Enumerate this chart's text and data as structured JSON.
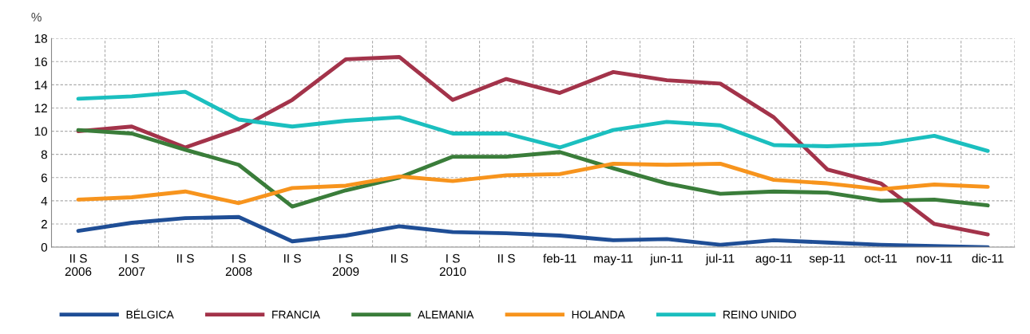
{
  "chart_data": {
    "type": "line",
    "ylabel": "%",
    "categories": [
      "II S\n2006",
      "I S\n2007",
      "II S",
      "I S\n2008",
      "II S",
      "I S\n2009",
      "II S",
      "I S\n2010",
      "II S",
      "feb-11",
      "may-11",
      "jun-11",
      "jul-11",
      "ago-11",
      "sep-11",
      "oct-11",
      "nov-11",
      "dic-11"
    ],
    "series": [
      {
        "name": "BÉLGICA",
        "color": "#1f4e96",
        "values": [
          1.4,
          2.1,
          2.5,
          2.6,
          0.5,
          1.0,
          1.8,
          1.3,
          1.2,
          1.0,
          0.6,
          0.7,
          0.2,
          0.6,
          0.4,
          0.2,
          0.1,
          0.0
        ]
      },
      {
        "name": "FRANCIA",
        "color": "#a3334a",
        "values": [
          10.0,
          10.4,
          8.6,
          10.2,
          12.7,
          16.2,
          16.4,
          12.7,
          14.5,
          13.3,
          15.1,
          14.4,
          14.1,
          11.2,
          6.7,
          5.5,
          2.0,
          1.1
        ]
      },
      {
        "name": "ALEMANIA",
        "color": "#3a7d3a",
        "values": [
          10.1,
          9.8,
          8.4,
          7.1,
          3.5,
          4.9,
          6.0,
          7.8,
          7.8,
          8.2,
          6.8,
          5.5,
          4.6,
          4.8,
          4.7,
          4.0,
          4.1,
          3.6
        ]
      },
      {
        "name": "HOLANDA",
        "color": "#f7941d",
        "values": [
          4.1,
          4.3,
          4.8,
          3.8,
          5.1,
          5.3,
          6.1,
          5.7,
          6.2,
          6.3,
          7.2,
          7.1,
          7.2,
          5.8,
          5.5,
          5.0,
          5.4,
          5.2
        ]
      },
      {
        "name": "REINO UNIDO",
        "color": "#1bbfbf",
        "values": [
          12.8,
          13.0,
          13.4,
          11.0,
          10.4,
          10.9,
          11.2,
          9.8,
          9.8,
          8.6,
          10.1,
          10.8,
          10.5,
          8.8,
          8.7,
          8.9,
          9.6,
          8.3
        ]
      }
    ],
    "ylim": [
      0,
      18
    ],
    "yticks": [
      0,
      2,
      4,
      6,
      8,
      10,
      12,
      14,
      16,
      18
    ],
    "grid": true,
    "legend": "bottom",
    "line_style": "solid",
    "marker": "none"
  }
}
